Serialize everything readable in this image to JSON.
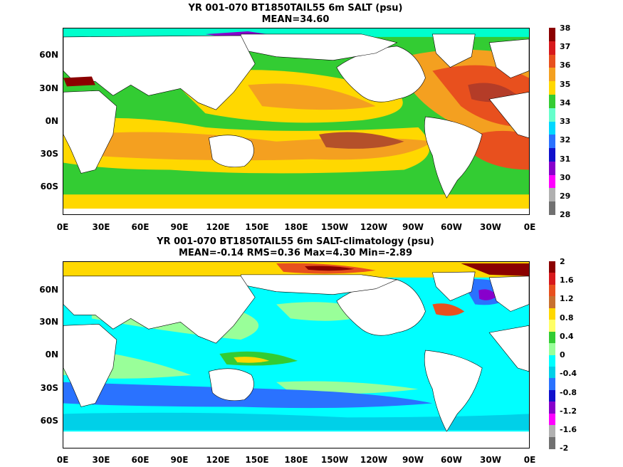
{
  "top_panel": {
    "title_line1": "YR 001-070 BT1850TAIL55 6m SALT (psu)",
    "title_line2": "MEAN=34.60",
    "lat_labels": [
      "60N",
      "30N",
      "0N",
      "30S",
      "60S"
    ],
    "lon_labels": [
      "0E",
      "30E",
      "60E",
      "90E",
      "120E",
      "150E",
      "180E",
      "150W",
      "120W",
      "90W",
      "60W",
      "30W",
      "0E"
    ],
    "colorbar_ticks": [
      "38",
      "37",
      "36",
      "35",
      "34",
      "33",
      "32",
      "31",
      "30",
      "29",
      "28"
    ],
    "colorbar_colors": [
      "#8b0000",
      "#d7191c",
      "#e8501e",
      "#f4a020",
      "#ffd800",
      "#33cc33",
      "#66ffcc",
      "#00d8ff",
      "#2a72ff",
      "#1010cc",
      "#8800cc",
      "#ff00ff",
      "#b0b0b0",
      "#707070"
    ]
  },
  "bottom_panel": {
    "title_line1": "YR 001-070 BT1850TAIL55 6m SALT-climatology (psu)",
    "title_line2": "MEAN=-0.14   RMS=0.36   Max=4.30   Min=-2.89",
    "lat_labels": [
      "60N",
      "30N",
      "0N",
      "30S",
      "60S"
    ],
    "lon_labels": [
      "0E",
      "30E",
      "60E",
      "90E",
      "120E",
      "150E",
      "180E",
      "150W",
      "120W",
      "90W",
      "60W",
      "30W",
      "0E"
    ],
    "colorbar_ticks": [
      "2",
      "1.6",
      "1.2",
      "0.8",
      "0.4",
      "0",
      "-0.4",
      "-0.8",
      "-1.2",
      "-1.6",
      "-2"
    ],
    "colorbar_colors": [
      "#8b0000",
      "#d7191c",
      "#e8501e",
      "#c87030",
      "#ffd800",
      "#ffff66",
      "#33cc33",
      "#99ff99",
      "#00ffff",
      "#00d0e8",
      "#2a72ff",
      "#1010cc",
      "#8800cc",
      "#ff00ff",
      "#b0b0b0",
      "#707070"
    ]
  }
}
